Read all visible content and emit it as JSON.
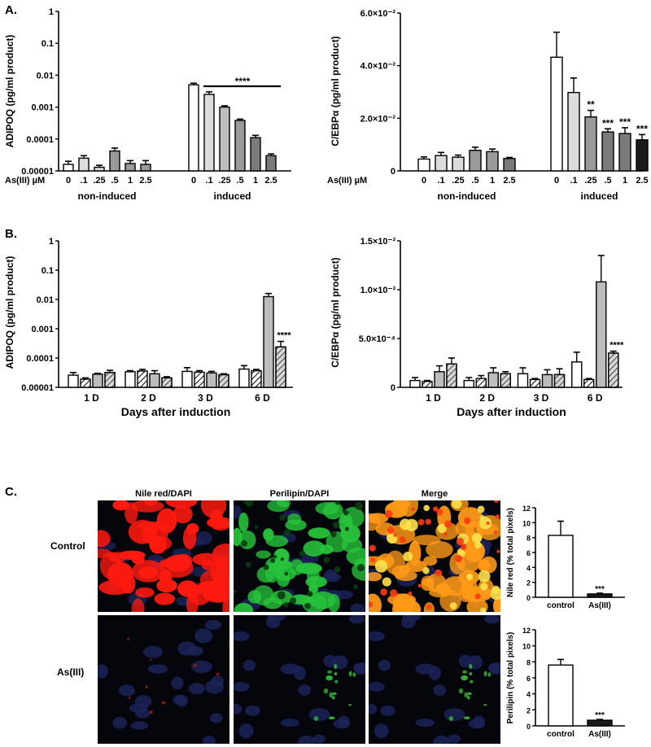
{
  "panels": {
    "a": "A.",
    "b": "B.",
    "c": "C."
  },
  "colors": {
    "white": "#ffffff",
    "light": "#dcdcdc",
    "mid": "#bdbdbd",
    "gray": "#9a9a9a",
    "dark": "#7a7a7a",
    "black": "#1a1a1a"
  },
  "chart_data": [
    {
      "id": "A-adipoq",
      "type": "bar",
      "scale": "log",
      "ylabel": "ADIPOQ (pg/ml product)",
      "ylim": [
        1e-05,
        1
      ],
      "yticks": [
        "1",
        "0.1",
        "0.01",
        "0.001",
        "0.0001",
        "0.00001"
      ],
      "dose_label": "As(III) µM",
      "groups": [
        "non-induced",
        "induced"
      ],
      "categories": [
        "0",
        ".1",
        ".25",
        ".5",
        "1",
        "2.5"
      ],
      "series": [
        {
          "group": "non-induced",
          "values": [
            1.6e-05,
            2.5e-05,
            1.3e-05,
            4.2e-05,
            1.7e-05,
            1.6e-05
          ],
          "errors": [
            4e-06,
            5e-06,
            2e-06,
            1e-05,
            4e-06,
            5e-06
          ]
        },
        {
          "group": "induced",
          "values": [
            0.005,
            0.0025,
            0.001,
            0.00038,
            0.00011,
            3e-05
          ],
          "errors": [
            0.0006,
            0.0005,
            0.0001,
            4e-05,
            2e-05,
            4e-06
          ]
        }
      ],
      "annotation": "****"
    },
    {
      "id": "A-cebpa",
      "type": "bar",
      "scale": "linear",
      "ylabel": "C/EBPα (pg/ml product)",
      "ylim": [
        0,
        0.06
      ],
      "yticks": [
        "0",
        "2.0×10⁻²",
        "4.0×10⁻²",
        "6.0×10⁻²"
      ],
      "dose_label": "As(III) µM",
      "groups": [
        "non-induced",
        "induced"
      ],
      "categories": [
        "0",
        ".1",
        ".25",
        ".5",
        "1",
        "2.5"
      ],
      "series": [
        {
          "group": "non-induced",
          "values": [
            0.0045,
            0.0058,
            0.0052,
            0.0078,
            0.0073,
            0.0047
          ],
          "errors": [
            0.0008,
            0.0012,
            0.0008,
            0.0012,
            0.001,
            0.0004
          ]
        },
        {
          "group": "induced",
          "values": [
            0.0432,
            0.0298,
            0.0205,
            0.0148,
            0.0142,
            0.0118
          ],
          "errors": [
            0.0095,
            0.0055,
            0.0025,
            0.0012,
            0.0022,
            0.002
          ]
        }
      ],
      "stars": [
        "",
        "",
        "**",
        "***",
        "***",
        "***"
      ]
    },
    {
      "id": "B-adipoq",
      "type": "bar",
      "scale": "log",
      "ylabel": "ADIPOQ (pg/ml product)",
      "xlabel": "Days after induction",
      "ylim": [
        1e-05,
        1
      ],
      "yticks": [
        "1",
        "0.1",
        "0.01",
        "0.001",
        "0.0001",
        "0.00001"
      ],
      "categories": [
        "1 D",
        "2 D",
        "3 D",
        "6 D"
      ],
      "series": [
        {
          "values": [
            2.6e-05,
            3.4e-05,
            3.5e-05,
            4.2e-05
          ],
          "errors": [
            6e-06,
            3e-06,
            1.2e-05,
            1.3e-05
          ]
        },
        {
          "values": [
            1.9e-05,
            3.6e-05,
            3.3e-05,
            3.7e-05
          ],
          "errors": [
            2e-06,
            5e-06,
            4e-06,
            4e-06
          ]
        },
        {
          "values": [
            2.8e-05,
            2.9e-05,
            3.1e-05,
            0.0125
          ],
          "errors": [
            2e-06,
            8e-06,
            4e-06,
            0.0035
          ]
        },
        {
          "values": [
            3.2e-05,
            2.1e-05,
            2.7e-05,
            0.00024
          ],
          "errors": [
            6e-06,
            2e-06,
            2e-06,
            0.00013
          ]
        }
      ],
      "stars": [
        "",
        "",
        "",
        "****"
      ]
    },
    {
      "id": "B-cebpa",
      "type": "bar",
      "scale": "linear",
      "ylabel": "C/EBPα (pg/ml product)",
      "xlabel": "Days after induction",
      "ylim": [
        0,
        0.0015
      ],
      "yticks": [
        "0",
        "5.0×10⁻⁴",
        "1.0×10⁻³",
        "1.5×10⁻³"
      ],
      "categories": [
        "1 D",
        "2 D",
        "3 D",
        "6 D"
      ],
      "series": [
        {
          "values": [
            7e-05,
            7e-05,
            0.00014,
            0.00026
          ],
          "errors": [
            3e-05,
            3e-05,
            6e-05,
            0.0001
          ]
        },
        {
          "values": [
            6e-05,
            9e-05,
            8e-05,
            8e-05
          ],
          "errors": [
            1e-05,
            3e-05,
            1e-05,
            1e-05
          ]
        },
        {
          "values": [
            0.00016,
            0.00015,
            0.00013,
            0.00108
          ],
          "errors": [
            6e-05,
            5e-05,
            5e-05,
            0.00027
          ]
        },
        {
          "values": [
            0.00024,
            0.00014,
            0.00013,
            0.00035
          ],
          "errors": [
            6e-05,
            2e-05,
            6e-05,
            2e-05
          ]
        }
      ],
      "stars": [
        "",
        "",
        "",
        "****"
      ]
    },
    {
      "id": "C-nilered",
      "type": "bar",
      "scale": "linear",
      "ylabel": "Nile red (% total pixels)",
      "ylim": [
        0,
        12
      ],
      "yticks": [
        "0",
        "2",
        "4",
        "6",
        "8",
        "10",
        "12"
      ],
      "categories": [
        "control",
        "As(III)"
      ],
      "values": [
        8.3,
        0.45
      ],
      "errors": [
        1.9,
        0.1
      ],
      "stars": [
        "",
        "***"
      ]
    },
    {
      "id": "C-perilipin",
      "type": "bar",
      "scale": "linear",
      "ylabel": "Perilipin (% total pixels)",
      "ylim": [
        0,
        12
      ],
      "yticks": [
        "0",
        "2",
        "4",
        "6",
        "8",
        "10",
        "12"
      ],
      "categories": [
        "control",
        "As(III)"
      ],
      "values": [
        7.6,
        0.7
      ],
      "errors": [
        0.7,
        0.1
      ],
      "stars": [
        "",
        "***"
      ]
    }
  ],
  "micrograph": {
    "columns": [
      "Nile red/DAPI",
      "Perilipin/DAPI",
      "Merge"
    ],
    "rows": [
      "Control",
      "As(III)"
    ]
  }
}
